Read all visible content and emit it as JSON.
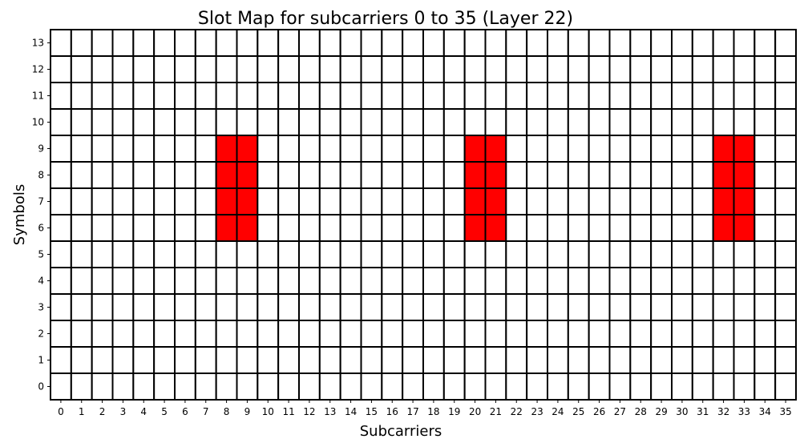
{
  "chart_data": {
    "type": "heatmap",
    "title": "Slot Map for subcarriers 0 to 35 (Layer 22)",
    "xlabel": "Subcarriers",
    "ylabel": "Symbols",
    "x_categories": [
      "0",
      "1",
      "2",
      "3",
      "4",
      "5",
      "6",
      "7",
      "8",
      "9",
      "10",
      "11",
      "12",
      "13",
      "14",
      "15",
      "16",
      "17",
      "18",
      "19",
      "20",
      "21",
      "22",
      "23",
      "24",
      "25",
      "26",
      "27",
      "28",
      "29",
      "30",
      "31",
      "32",
      "33",
      "34",
      "35"
    ],
    "y_categories": [
      "0",
      "1",
      "2",
      "3",
      "4",
      "5",
      "6",
      "7",
      "8",
      "9",
      "10",
      "11",
      "12",
      "13"
    ],
    "xlim": [
      0,
      35
    ],
    "ylim": [
      0,
      13
    ],
    "grid": true,
    "colors": {
      "empty": "#ffffff",
      "allocated": "#ff0000",
      "cell_border": "#000000"
    },
    "allocated_cells": [
      {
        "subcarrier": 8,
        "symbol": 6
      },
      {
        "subcarrier": 8,
        "symbol": 7
      },
      {
        "subcarrier": 8,
        "symbol": 8
      },
      {
        "subcarrier": 8,
        "symbol": 9
      },
      {
        "subcarrier": 9,
        "symbol": 6
      },
      {
        "subcarrier": 9,
        "symbol": 7
      },
      {
        "subcarrier": 9,
        "symbol": 8
      },
      {
        "subcarrier": 9,
        "symbol": 9
      },
      {
        "subcarrier": 20,
        "symbol": 6
      },
      {
        "subcarrier": 20,
        "symbol": 7
      },
      {
        "subcarrier": 20,
        "symbol": 8
      },
      {
        "subcarrier": 20,
        "symbol": 9
      },
      {
        "subcarrier": 21,
        "symbol": 6
      },
      {
        "subcarrier": 21,
        "symbol": 7
      },
      {
        "subcarrier": 21,
        "symbol": 8
      },
      {
        "subcarrier": 21,
        "symbol": 9
      },
      {
        "subcarrier": 32,
        "symbol": 6
      },
      {
        "subcarrier": 32,
        "symbol": 7
      },
      {
        "subcarrier": 32,
        "symbol": 8
      },
      {
        "subcarrier": 32,
        "symbol": 9
      },
      {
        "subcarrier": 33,
        "symbol": 6
      },
      {
        "subcarrier": 33,
        "symbol": 7
      },
      {
        "subcarrier": 33,
        "symbol": 8
      },
      {
        "subcarrier": 33,
        "symbol": 9
      }
    ]
  }
}
